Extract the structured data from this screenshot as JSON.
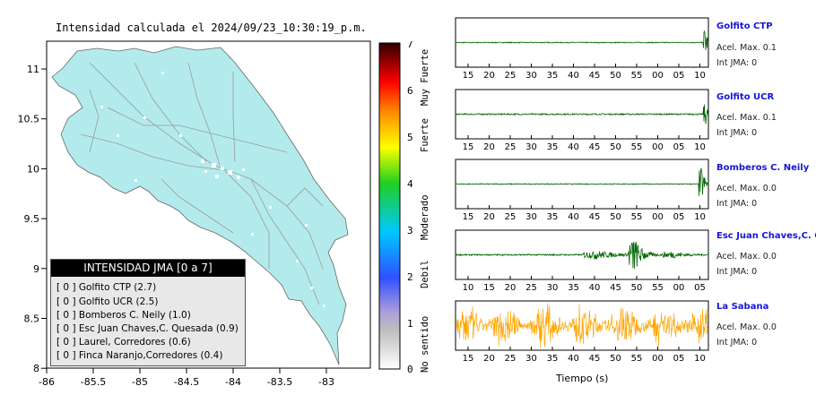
{
  "map": {
    "title": "Intensidad calculada el 2024/09/23_10:30:19_p.m.",
    "lat_ticks": [
      "11",
      "10.5",
      "10",
      "9.5",
      "9",
      "8.5",
      "8"
    ],
    "lon_ticks": [
      "-86",
      "-85.5",
      "-85",
      "-84.5",
      "-84",
      "-83.5",
      "-83"
    ],
    "land_color": "#b3ebec",
    "legend": {
      "title": "INTENSIDAD JMA [0 a 7]",
      "rows": [
        {
          "bracket": "[ 0 ]",
          "name": "Golfito CTP (2.7)"
        },
        {
          "bracket": "[ 0 ]",
          "name": "Golfito UCR (2.5)"
        },
        {
          "bracket": "[ 0 ]",
          "name": "Bomberos C. Neily (1.0)"
        },
        {
          "bracket": "[ 0 ]",
          "name": "Esc Juan Chaves,C. Quesada (0.9)"
        },
        {
          "bracket": "[ 0 ]",
          "name": "Laurel, Corredores (0.6)"
        },
        {
          "bracket": "[ 0 ]",
          "name": "Finca Naranjo,Corredores (0.4)"
        }
      ]
    }
  },
  "scale": {
    "numbers": [
      "7",
      "6",
      "5",
      "4",
      "3",
      "2",
      "1",
      "0"
    ],
    "words": [
      "Muy Fuerte",
      "Fuerte",
      "Moderado",
      "Debil",
      "No sentido"
    ]
  },
  "traces": [
    {
      "station": "Golfito CTP",
      "acel": "Acel. Max. 0.1",
      "jma": "Int JMA: 0",
      "color": "#006400",
      "ticks": [
        "15",
        "20",
        "25",
        "30",
        "35",
        "40",
        "45",
        "50",
        "55",
        "00",
        "05",
        "10"
      ]
    },
    {
      "station": "Golfito UCR",
      "acel": "Acel. Max. 0.1",
      "jma": "Int JMA: 0",
      "color": "#006400",
      "ticks": [
        "15",
        "20",
        "25",
        "30",
        "35",
        "40",
        "45",
        "50",
        "55",
        "00",
        "05",
        "10"
      ]
    },
    {
      "station": "Bomberos C. Neily",
      "acel": "Acel. Max. 0.0",
      "jma": "Int JMA: 0",
      "color": "#006400",
      "ticks": [
        "15",
        "20",
        "25",
        "30",
        "35",
        "40",
        "45",
        "50",
        "55",
        "00",
        "05",
        "10"
      ]
    },
    {
      "station": "Esc Juan Chaves,C. Qu",
      "acel": "Acel. Max. 0.0",
      "jma": "Int JMA: 0",
      "color": "#006400",
      "ticks": [
        "10",
        "15",
        "20",
        "25",
        "30",
        "35",
        "40",
        "45",
        "50",
        "55",
        "00",
        "05"
      ]
    },
    {
      "station": "La Sabana",
      "acel": "Acel. Max. 0.0",
      "jma": "Int JMA: 0",
      "color": "#ffa500",
      "ticks": [
        "15",
        "20",
        "25",
        "30",
        "35",
        "40",
        "45",
        "50",
        "55",
        "00",
        "05",
        "10"
      ]
    }
  ],
  "xlabel": "Tiempo (s)"
}
